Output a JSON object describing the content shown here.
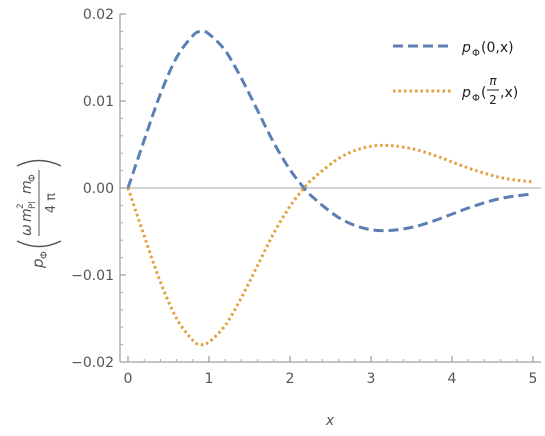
{
  "chart_data": {
    "type": "line",
    "title": "",
    "xlabel": "x",
    "ylabel": {
      "outer_left": "p",
      "outer_sub": "Φ",
      "numerator_omega": "ω",
      "numerator_m": "m",
      "numerator_pl_sub": "Pl",
      "numerator_pl_sup": "2",
      "numerator_m2": "m",
      "numerator_phi_sub": "Φ",
      "denominator": "4 π"
    },
    "xlim": [
      0,
      5.1
    ],
    "ylim": [
      -0.02,
      0.02
    ],
    "x_ticks": [
      "0",
      "1",
      "2",
      "3",
      "4",
      "5"
    ],
    "y_ticks": [
      "0.02",
      "0.01",
      "0.00",
      "−0.01",
      "−0.02"
    ],
    "x_tick_values": [
      0,
      1,
      2,
      3,
      4,
      5
    ],
    "y_tick_values": [
      0.02,
      0.01,
      0.0,
      -0.01,
      -0.02
    ],
    "grid": false,
    "zero_line": true,
    "legend_position": "top-right",
    "series": [
      {
        "name": "pΦ(0,x)",
        "legend": {
          "p": "p",
          "sub": "Φ",
          "args": "(0,x)"
        },
        "color": "#5b7fb5",
        "style": "dashed",
        "x": [
          0,
          0.2,
          0.4,
          0.6,
          0.8,
          0.9,
          1.0,
          1.2,
          1.4,
          1.6,
          1.8,
          2.0,
          2.2,
          2.3,
          2.4,
          2.6,
          2.8,
          3.0,
          3.2,
          3.4,
          3.6,
          3.8,
          4.0,
          4.2,
          4.4,
          4.6,
          4.8,
          5.0
        ],
        "y": [
          0,
          0.0055,
          0.0108,
          0.015,
          0.0175,
          0.018,
          0.0177,
          0.0158,
          0.0126,
          0.0089,
          0.0052,
          0.0021,
          -0.0003,
          -0.0012,
          -0.002,
          -0.0034,
          -0.0043,
          -0.0048,
          -0.0049,
          -0.0047,
          -0.0043,
          -0.0037,
          -0.003,
          -0.0023,
          -0.0017,
          -0.0012,
          -0.0009,
          -0.0007
        ]
      },
      {
        "name": "pΦ(π/2,x)",
        "legend": {
          "p": "p",
          "sub": "Φ",
          "frac_num": "π",
          "frac_den": "2",
          "args_close": ",x)"
        },
        "color": "#e0a03a",
        "style": "dotted",
        "x": [
          0,
          0.2,
          0.4,
          0.6,
          0.8,
          0.9,
          1.0,
          1.2,
          1.4,
          1.6,
          1.8,
          2.0,
          2.2,
          2.3,
          2.4,
          2.6,
          2.8,
          3.0,
          3.2,
          3.4,
          3.6,
          3.8,
          4.0,
          4.2,
          4.4,
          4.6,
          4.8,
          5.0
        ],
        "y": [
          0,
          -0.0055,
          -0.0108,
          -0.015,
          -0.0175,
          -0.018,
          -0.0177,
          -0.0158,
          -0.0126,
          -0.0089,
          -0.0052,
          -0.0021,
          0.0003,
          0.0012,
          0.002,
          0.0034,
          0.0043,
          0.0048,
          0.0049,
          0.0047,
          0.0043,
          0.0037,
          0.003,
          0.0023,
          0.0017,
          0.0012,
          0.0009,
          0.0007
        ]
      }
    ]
  }
}
